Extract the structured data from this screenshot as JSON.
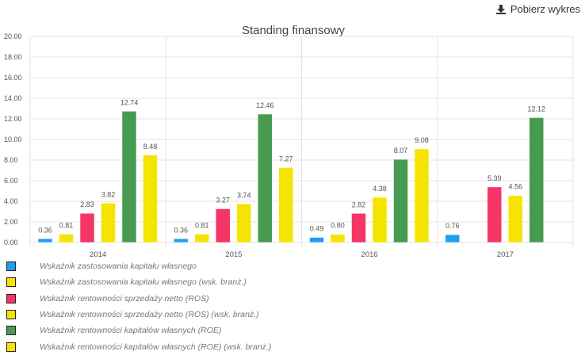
{
  "download": {
    "label": "Pobierz wykres",
    "icon": "download-icon"
  },
  "chart_data": {
    "type": "bar",
    "title": "Standing finansowy",
    "categories": [
      "2014",
      "2015",
      "2016",
      "2017"
    ],
    "ylim": [
      0,
      20
    ],
    "yticks": [
      "0.00",
      "2.00",
      "4.00",
      "6.00",
      "8.00",
      "10.00",
      "12.00",
      "14.00",
      "16.00",
      "18.00",
      "20.00"
    ],
    "grid": true,
    "legend_position": "bottom",
    "series": [
      {
        "name": "Wskaźnik zastosowania kapitału własnego",
        "color": "#1ea0f0",
        "values": [
          0.36,
          0.36,
          0.49,
          0.76
        ]
      },
      {
        "name": "Wskaźnik zastosowania kapitału własnego (wsk. branż.)",
        "color": "#f5e400",
        "values": [
          0.81,
          0.81,
          0.8,
          null
        ]
      },
      {
        "name": "Wskaźnik rentowności sprzedaży netto (ROS)",
        "color": "#f53566",
        "values": [
          2.83,
          3.27,
          2.82,
          5.39
        ]
      },
      {
        "name": "Wskaźnik rentowności sprzedaży netto (ROS) (wsk. branż.)",
        "color": "#f5e400",
        "values": [
          3.82,
          3.74,
          4.38,
          4.56
        ]
      },
      {
        "name": "Wskaźnik rentowności kapitałów własnych (ROE)",
        "color": "#469b50",
        "values": [
          12.74,
          12.46,
          8.07,
          12.12
        ]
      },
      {
        "name": "Wskaźnik rentowności kapitałów własnych (ROE) (wsk. branż.)",
        "color": "#f5e400",
        "values": [
          8.48,
          7.27,
          9.08,
          null
        ]
      }
    ]
  }
}
